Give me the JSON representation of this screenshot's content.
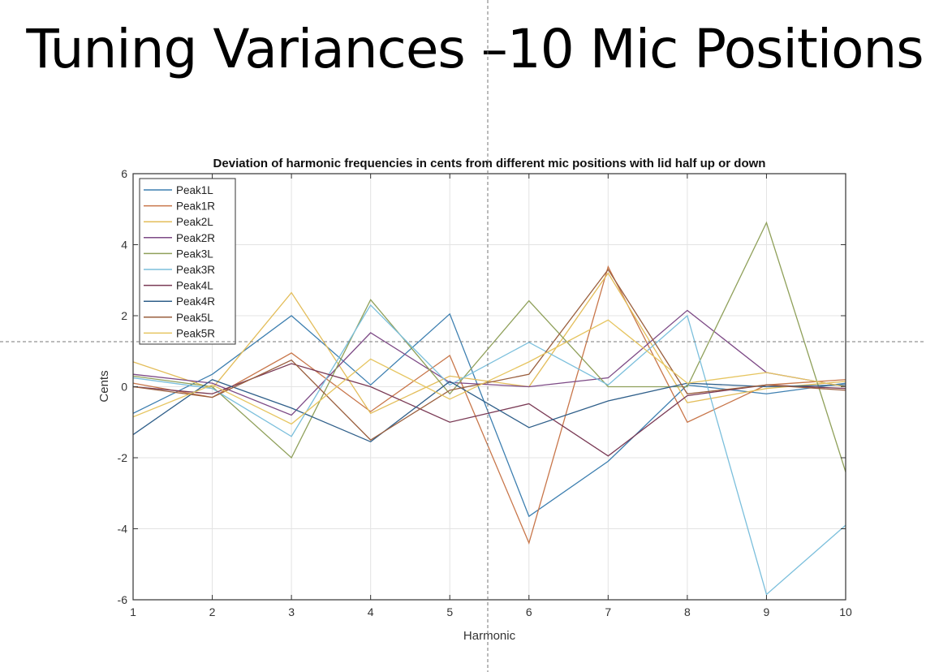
{
  "slide": {
    "title": "Tuning Variances –10 Mic Positions"
  },
  "chart_data": {
    "type": "line",
    "title": "Deviation of harmonic frequencies in cents from different mic positions with lid half up or down",
    "xlabel": "Harmonic",
    "ylabel": "Cents",
    "xlim": [
      1,
      10
    ],
    "ylim": [
      -6,
      6
    ],
    "xticks": [
      1,
      2,
      3,
      4,
      5,
      6,
      7,
      8,
      9,
      10
    ],
    "yticks": [
      -6,
      -4,
      -2,
      0,
      2,
      4,
      6
    ],
    "grid": true,
    "legend_position": "top-left",
    "x": [
      1,
      2,
      3,
      4,
      5,
      6,
      7,
      8,
      9,
      10
    ],
    "series": [
      {
        "name": "Peak1L",
        "color": "#3d7fb0",
        "values": [
          -0.75,
          0.35,
          2.0,
          0.05,
          2.05,
          -3.65,
          -2.1,
          0.05,
          -0.2,
          0.1
        ]
      },
      {
        "name": "Peak1R",
        "color": "#c8764a",
        "values": [
          0.1,
          -0.3,
          0.95,
          -0.7,
          0.88,
          -4.4,
          3.38,
          -1.0,
          0.05,
          0.2
        ]
      },
      {
        "name": "Peak2L",
        "color": "#e3bd5a",
        "values": [
          0.7,
          -0.05,
          2.65,
          -0.75,
          0.3,
          0.0,
          3.2,
          -0.45,
          -0.05,
          0.15
        ]
      },
      {
        "name": "Peak2R",
        "color": "#7d4a86",
        "values": [
          0.35,
          0.1,
          -0.8,
          1.52,
          0.12,
          0.0,
          0.25,
          2.15,
          0.4,
          0.0
        ]
      },
      {
        "name": "Peak3L",
        "color": "#8fa05a",
        "values": [
          0.3,
          0.0,
          -2.0,
          2.45,
          -0.2,
          2.42,
          0.0,
          0.0,
          4.62,
          -2.4
        ]
      },
      {
        "name": "Peak3R",
        "color": "#7bbfdc",
        "values": [
          0.25,
          -0.05,
          -1.4,
          2.3,
          0.05,
          1.25,
          0.05,
          2.0,
          -5.85,
          -3.9
        ]
      },
      {
        "name": "Peak4L",
        "color": "#7a3a55",
        "values": [
          0.0,
          -0.2,
          0.65,
          0.0,
          -1.0,
          -0.48,
          -1.95,
          -0.25,
          0.05,
          -0.05
        ]
      },
      {
        "name": "Peak4R",
        "color": "#2f5f8a",
        "values": [
          -1.35,
          0.2,
          -0.6,
          -1.55,
          0.15,
          -1.15,
          -0.4,
          0.1,
          0.0,
          0.05
        ]
      },
      {
        "name": "Peak5L",
        "color": "#9a5f3e",
        "values": [
          0.0,
          -0.3,
          0.75,
          -1.5,
          -0.1,
          0.35,
          3.3,
          -0.2,
          0.05,
          -0.1
        ]
      },
      {
        "name": "Peak5R",
        "color": "#e6c560",
        "values": [
          -0.85,
          0.05,
          -1.05,
          0.78,
          -0.35,
          0.7,
          1.88,
          0.1,
          0.4,
          0.0
        ]
      }
    ]
  }
}
